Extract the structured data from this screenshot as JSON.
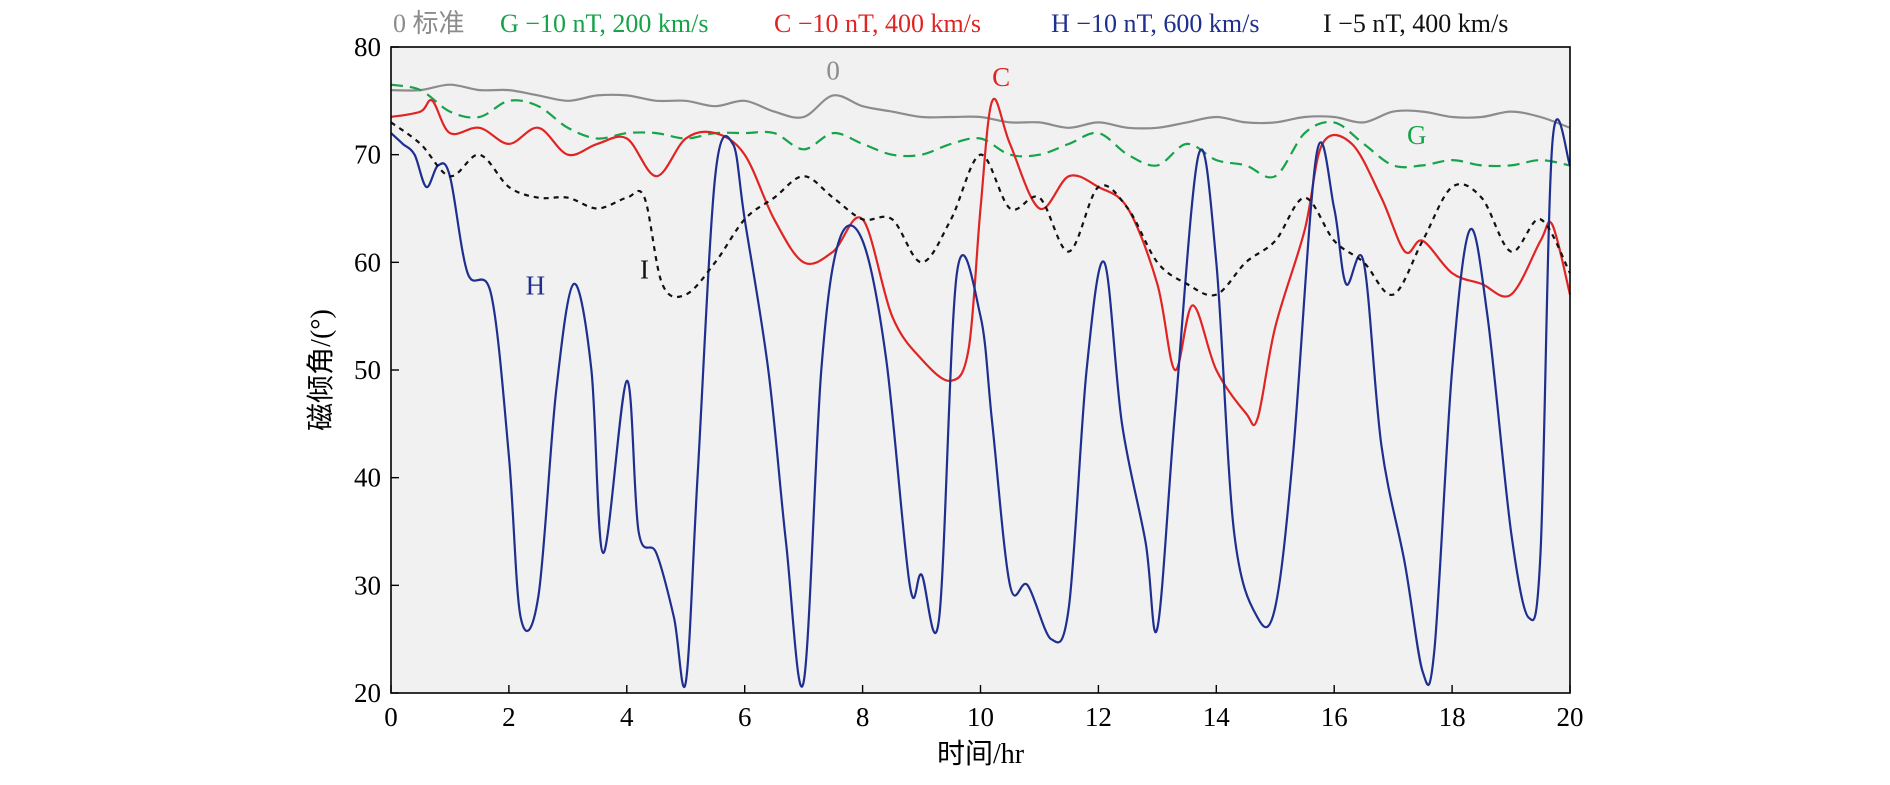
{
  "chart_data": {
    "type": "line",
    "xlabel": "时间/hr",
    "ylabel": "磁倾角/(°)",
    "xlim": [
      0,
      20
    ],
    "ylim": [
      20,
      80
    ],
    "x_ticks": [
      0,
      2,
      4,
      6,
      8,
      10,
      12,
      14,
      16,
      18,
      20
    ],
    "y_ticks": [
      20,
      30,
      40,
      50,
      60,
      70,
      80
    ],
    "grid": false,
    "legend_position": "top",
    "background_fill": "#f1f1f1",
    "series": [
      {
        "name": "0 标准",
        "inline_label": "0",
        "label_at": [
          7.5,
          77.0
        ],
        "color": "#8c8c8c",
        "dash": "solid",
        "x": [
          0,
          0.5,
          1,
          1.5,
          2,
          2.5,
          3,
          3.5,
          4,
          4.5,
          5,
          5.5,
          6,
          6.5,
          7,
          7.5,
          8,
          8.5,
          9,
          9.5,
          10,
          10.5,
          11,
          11.5,
          12,
          12.5,
          13,
          13.5,
          14,
          14.5,
          15,
          15.5,
          16,
          16.5,
          17,
          17.5,
          18,
          18.5,
          19,
          19.5,
          20
        ],
        "y": [
          76,
          76,
          76.5,
          76,
          76,
          75.5,
          75,
          75.5,
          75.5,
          75,
          75,
          74.5,
          75,
          74,
          73.5,
          75.5,
          74.5,
          74,
          73.5,
          73.5,
          73.5,
          73,
          73,
          72.5,
          73,
          72.5,
          72.5,
          73,
          73.5,
          73,
          73,
          73.5,
          73.5,
          73,
          74,
          74,
          73.5,
          73.5,
          74,
          73.5,
          72.5
        ]
      },
      {
        "name": "G −10 nT, 200 km/s",
        "inline_label": "G",
        "label_at": [
          17.4,
          71.0
        ],
        "color": "#16a34a",
        "dash": "dashed",
        "x": [
          0,
          0.5,
          1,
          1.5,
          2,
          2.5,
          3,
          3.5,
          4,
          4.5,
          5,
          5.5,
          6,
          6.5,
          7,
          7.5,
          8,
          8.5,
          9,
          9.5,
          10,
          10.5,
          11,
          11.5,
          12,
          12.5,
          13,
          13.5,
          14,
          14.5,
          15,
          15.5,
          16,
          16.5,
          17,
          17.5,
          18,
          18.5,
          19,
          19.5,
          20
        ],
        "y": [
          76.5,
          76,
          74,
          73.5,
          75,
          74.5,
          72.5,
          71.5,
          72,
          72,
          71.5,
          72,
          72,
          72,
          70.5,
          72,
          71,
          70,
          70,
          71,
          71.5,
          70,
          70,
          71,
          72,
          70,
          69,
          71,
          69.5,
          69,
          68,
          72,
          73,
          71,
          69,
          69,
          69.5,
          69,
          69,
          69.5,
          69
        ]
      },
      {
        "name": "C −10 nT, 400 km/s",
        "inline_label": "C",
        "label_at": [
          10.35,
          76.4
        ],
        "color": "#e02424",
        "dash": "solid",
        "x": [
          0,
          0.5,
          0.7,
          1,
          1.5,
          2,
          2.5,
          3,
          3.5,
          4,
          4.5,
          5,
          5.5,
          6,
          6.5,
          7,
          7.5,
          8,
          8.5,
          9,
          9.5,
          9.8,
          10,
          10.2,
          10.5,
          11,
          11.5,
          12,
          12.5,
          13,
          13.3,
          13.6,
          14,
          14.5,
          14.7,
          15,
          15.5,
          15.8,
          16.3,
          16.8,
          17.2,
          17.5,
          18,
          18.5,
          19,
          19.5,
          19.7,
          20
        ],
        "y": [
          73.5,
          74,
          75,
          72,
          72.5,
          71,
          72.5,
          70,
          71,
          71.5,
          68,
          71.5,
          72,
          70,
          64,
          60,
          61,
          64,
          55,
          51,
          49,
          52,
          65,
          75,
          71,
          65,
          68,
          67,
          65,
          58,
          50,
          56,
          50,
          46,
          45.5,
          54,
          63,
          71,
          71,
          66,
          61,
          62,
          59,
          58,
          57,
          62,
          63.5,
          57
        ]
      },
      {
        "name": "H −10 nT, 600 km/s",
        "inline_label": "H",
        "label_at": [
          2.45,
          57.0
        ],
        "color": "#1e2f8f",
        "dash": "solid",
        "x": [
          0,
          0.2,
          0.4,
          0.6,
          0.8,
          1,
          1.3,
          1.7,
          2,
          2.2,
          2.5,
          2.8,
          3.1,
          3.4,
          3.6,
          4,
          4.2,
          4.5,
          4.8,
          5,
          5.2,
          5.5,
          5.8,
          6,
          6.4,
          6.7,
          7,
          7.3,
          7.6,
          8,
          8.4,
          8.8,
          9,
          9.3,
          9.6,
          10,
          10.2,
          10.5,
          10.8,
          11.2,
          11.5,
          11.8,
          12.1,
          12.4,
          12.8,
          13,
          13.3,
          13.7,
          14,
          14.3,
          14.7,
          15,
          15.3,
          15.7,
          16,
          16.2,
          16.5,
          16.8,
          17.2,
          17.5,
          17.7,
          18,
          18.3,
          18.6,
          19,
          19.3,
          19.5,
          19.7,
          20
        ],
        "y": [
          72,
          71,
          70,
          67,
          69,
          68,
          59,
          57,
          42,
          27,
          29,
          48,
          58,
          50,
          33,
          49,
          35,
          33,
          27,
          21,
          40,
          68,
          71,
          64,
          50,
          34,
          21,
          50,
          62,
          62,
          51,
          30,
          31,
          27,
          59,
          55,
          45,
          30,
          30,
          25,
          28,
          50,
          60,
          45,
          34,
          26,
          46,
          70,
          60,
          35,
          27,
          28,
          42,
          70,
          65,
          58,
          60,
          43,
          32,
          22,
          24,
          50,
          63,
          55,
          35,
          27,
          33,
          71,
          69
        ]
      },
      {
        "name": "I −5 nT, 400 km/s",
        "inline_label": "I",
        "label_at": [
          4.3,
          58.5
        ],
        "color": "#111111",
        "dash": "dotted",
        "x": [
          0,
          0.5,
          1,
          1.5,
          2,
          2.5,
          3,
          3.5,
          4,
          4.3,
          4.6,
          5,
          5.5,
          6,
          6.5,
          7,
          7.5,
          8,
          8.5,
          9,
          9.5,
          10,
          10.5,
          11,
          11.5,
          12,
          12.5,
          13,
          13.5,
          14,
          14.5,
          15,
          15.5,
          16,
          16.5,
          17,
          17.5,
          18,
          18.5,
          19,
          19.5,
          20
        ],
        "y": [
          73,
          71,
          68,
          70,
          67,
          66,
          66,
          65,
          66,
          66,
          58,
          57,
          60,
          64,
          66,
          68,
          66,
          64,
          64,
          60,
          64,
          70,
          65,
          66,
          61,
          67,
          65,
          60,
          58,
          57,
          60,
          62,
          66,
          62,
          60,
          57,
          62,
          67,
          66,
          61,
          64,
          59
        ]
      }
    ]
  }
}
